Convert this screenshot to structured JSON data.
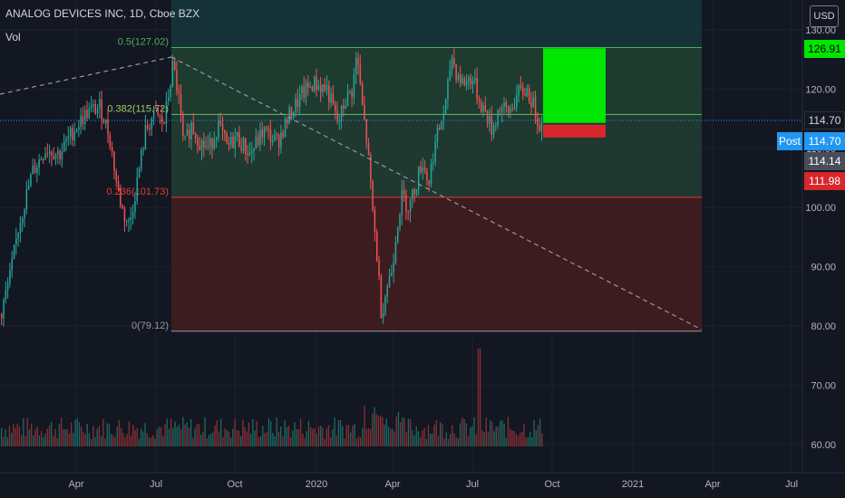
{
  "header": {
    "symbol_line": "ANALOG DEVICES INC, 1D, Cboe BZX",
    "volume_label": "Vol",
    "currency_button": "USD"
  },
  "price_badges": {
    "target": "126.91",
    "last": "114.70",
    "post_label": "Post",
    "post": "114.70",
    "prev": "114.14",
    "stop": "111.98"
  },
  "colors": {
    "background": "#131722",
    "up": "#26a69a",
    "down": "#ef5350",
    "fib_upper_fill": "#1e3b2f",
    "fib_lower_fill": "#3d1c20",
    "fib_top_fill": "#173a40",
    "target_box": "#00e600",
    "stop_box": "#d9262c",
    "last_line": "#2196f3"
  },
  "chart_data": {
    "type": "candlestick",
    "ylim": [
      55,
      133
    ],
    "x_ticks": [
      "Apr",
      "Jul",
      "Oct",
      "2020",
      "Apr",
      "Jul",
      "Oct",
      "2021",
      "Apr",
      "Jul"
    ],
    "y_ticks": [
      "130.00",
      "120.00",
      "110.00",
      "100.00",
      "90.00",
      "80.00",
      "70.00",
      "60.00"
    ],
    "y_tick_values": [
      130,
      120,
      110,
      100,
      90,
      80,
      70,
      60
    ],
    "fib_levels": [
      {
        "label": "0.5(127.02)",
        "value": 127.02
      },
      {
        "label": "0.382(115.72)",
        "value": 115.72
      },
      {
        "label": "0.236(101.73)",
        "value": 101.73
      },
      {
        "label": "0(79.12)",
        "value": 79.12
      }
    ],
    "trendline": {
      "start": [
        "2019-07",
        125.8
      ],
      "end": [
        "2021-03",
        79.12
      ]
    },
    "position": {
      "entry": 114.14,
      "target": 126.91,
      "stop": 111.98
    },
    "price_path": [
      [
        0,
        82
      ],
      [
        10,
        88
      ],
      [
        20,
        97
      ],
      [
        35,
        106
      ],
      [
        50,
        110
      ],
      [
        65,
        109
      ],
      [
        80,
        113
      ],
      [
        95,
        116
      ],
      [
        110,
        117
      ],
      [
        120,
        112
      ],
      [
        128,
        104
      ],
      [
        135,
        99
      ],
      [
        142,
        97
      ],
      [
        150,
        104
      ],
      [
        160,
        113
      ],
      [
        170,
        116
      ],
      [
        180,
        114
      ],
      [
        190,
        124
      ],
      [
        196,
        119
      ],
      [
        202,
        110
      ],
      [
        210,
        114
      ],
      [
        220,
        111
      ],
      [
        230,
        110
      ],
      [
        240,
        114
      ],
      [
        250,
        110
      ],
      [
        260,
        112
      ],
      [
        275,
        109
      ],
      [
        290,
        113
      ],
      [
        305,
        111
      ],
      [
        320,
        116
      ],
      [
        332,
        119
      ],
      [
        345,
        121
      ],
      [
        360,
        120
      ],
      [
        372,
        114
      ],
      [
        380,
        118
      ],
      [
        388,
        120
      ],
      [
        393,
        126
      ],
      [
        398,
        118
      ],
      [
        404,
        111
      ],
      [
        410,
        100
      ],
      [
        415,
        92
      ],
      [
        420,
        82
      ],
      [
        425,
        86
      ],
      [
        432,
        90
      ],
      [
        437,
        97
      ],
      [
        443,
        102
      ],
      [
        450,
        100
      ],
      [
        458,
        104
      ],
      [
        465,
        108
      ],
      [
        472,
        104
      ],
      [
        478,
        110
      ],
      [
        485,
        114
      ],
      [
        492,
        118
      ],
      [
        497,
        126
      ],
      [
        502,
        123
      ],
      [
        510,
        121
      ],
      [
        520,
        122
      ],
      [
        528,
        118
      ],
      [
        535,
        116
      ],
      [
        542,
        113
      ],
      [
        550,
        117
      ],
      [
        560,
        116
      ],
      [
        570,
        119
      ],
      [
        580,
        120
      ],
      [
        588,
        117
      ],
      [
        595,
        114
      ]
    ]
  }
}
